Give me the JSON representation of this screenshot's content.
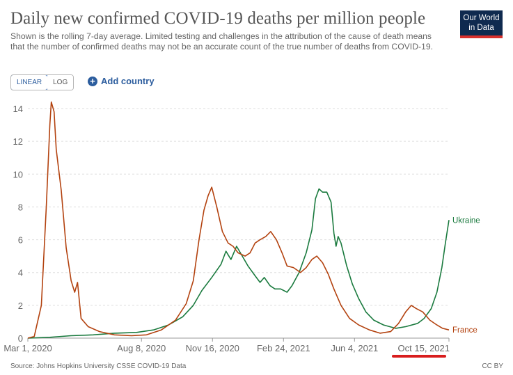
{
  "header": {
    "title": "Daily new confirmed COVID-19 deaths per million people",
    "subtitle": "Shown is the rolling 7-day average. Limited testing and challenges in the attribution of the cause of death means that the number of confirmed deaths may not be an accurate count of the true number of deaths from COVID-19.",
    "logo_line1": "Our World",
    "logo_line2": "in Data"
  },
  "controls": {
    "linear_label": "LINEAR",
    "log_label": "LOG",
    "add_country_label": "Add country",
    "add_icon": "plus-circle-icon"
  },
  "footer": {
    "source": "Source: Johns Hopkins University CSSE COVID-19 Data",
    "license": "CC BY"
  },
  "colors": {
    "ukraine": "#1a7a3e",
    "france": "#b3420f",
    "grid": "#dddddd",
    "highlight": "#d81d1d"
  },
  "chart_data": {
    "type": "line",
    "x_range": [
      "2020-03-01",
      "2021-10-15"
    ],
    "ylim": [
      0,
      14
    ],
    "y_ticks": [
      "0",
      "2",
      "4",
      "6",
      "8",
      "10",
      "12",
      "14"
    ],
    "x_ticks": [
      "Mar 1, 2020",
      "Aug 8, 2020",
      "Nov 16, 2020",
      "Feb 24, 2021",
      "Jun 4, 2021",
      "Oct 15, 2021"
    ],
    "x_tick_dates": [
      "2020-03-01",
      "2020-08-08",
      "2020-11-16",
      "2021-02-24",
      "2021-06-04",
      "2021-10-15"
    ],
    "series": [
      {
        "name": "Ukraine",
        "color": "#1a7a3e",
        "points": [
          [
            "2020-03-01",
            0
          ],
          [
            "2020-04-01",
            0.05
          ],
          [
            "2020-05-01",
            0.15
          ],
          [
            "2020-06-01",
            0.2
          ],
          [
            "2020-07-01",
            0.3
          ],
          [
            "2020-08-01",
            0.35
          ],
          [
            "2020-08-25",
            0.5
          ],
          [
            "2020-09-15",
            0.8
          ],
          [
            "2020-10-05",
            1.3
          ],
          [
            "2020-10-20",
            2.0
          ],
          [
            "2020-11-01",
            2.9
          ],
          [
            "2020-11-15",
            3.7
          ],
          [
            "2020-11-28",
            4.5
          ],
          [
            "2020-12-05",
            5.3
          ],
          [
            "2020-12-12",
            4.8
          ],
          [
            "2020-12-20",
            5.6
          ],
          [
            "2020-12-28",
            5.0
          ],
          [
            "2021-01-05",
            4.4
          ],
          [
            "2021-01-15",
            3.8
          ],
          [
            "2021-01-22",
            3.4
          ],
          [
            "2021-01-28",
            3.7
          ],
          [
            "2021-02-05",
            3.2
          ],
          [
            "2021-02-12",
            3.0
          ],
          [
            "2021-02-20",
            3.0
          ],
          [
            "2021-03-01",
            2.8
          ],
          [
            "2021-03-08",
            3.2
          ],
          [
            "2021-03-18",
            4.0
          ],
          [
            "2021-03-28",
            5.2
          ],
          [
            "2021-04-05",
            6.6
          ],
          [
            "2021-04-10",
            8.5
          ],
          [
            "2021-04-15",
            9.1
          ],
          [
            "2021-04-20",
            8.9
          ],
          [
            "2021-04-26",
            8.9
          ],
          [
            "2021-05-02",
            8.3
          ],
          [
            "2021-05-06",
            6.4
          ],
          [
            "2021-05-09",
            5.6
          ],
          [
            "2021-05-12",
            6.2
          ],
          [
            "2021-05-16",
            5.8
          ],
          [
            "2021-05-24",
            4.4
          ],
          [
            "2021-06-01",
            3.3
          ],
          [
            "2021-06-10",
            2.4
          ],
          [
            "2021-06-20",
            1.6
          ],
          [
            "2021-07-01",
            1.1
          ],
          [
            "2021-07-15",
            0.8
          ],
          [
            "2021-08-01",
            0.6
          ],
          [
            "2021-08-15",
            0.7
          ],
          [
            "2021-09-01",
            0.9
          ],
          [
            "2021-09-10",
            1.2
          ],
          [
            "2021-09-20",
            1.8
          ],
          [
            "2021-09-28",
            2.8
          ],
          [
            "2021-10-05",
            4.3
          ],
          [
            "2021-10-10",
            5.8
          ],
          [
            "2021-10-15",
            7.2
          ]
        ]
      },
      {
        "name": "France",
        "color": "#b3420f",
        "points": [
          [
            "2020-03-01",
            0
          ],
          [
            "2020-03-10",
            0.1
          ],
          [
            "2020-03-20",
            2.0
          ],
          [
            "2020-03-27",
            8.0
          ],
          [
            "2020-04-01",
            13.0
          ],
          [
            "2020-04-03",
            14.4
          ],
          [
            "2020-04-07",
            13.8
          ],
          [
            "2020-04-10",
            11.5
          ],
          [
            "2020-04-17",
            9.0
          ],
          [
            "2020-04-24",
            5.5
          ],
          [
            "2020-05-01",
            3.5
          ],
          [
            "2020-05-06",
            2.8
          ],
          [
            "2020-05-10",
            3.4
          ],
          [
            "2020-05-15",
            1.2
          ],
          [
            "2020-05-25",
            0.7
          ],
          [
            "2020-06-10",
            0.4
          ],
          [
            "2020-07-01",
            0.2
          ],
          [
            "2020-07-25",
            0.15
          ],
          [
            "2020-08-15",
            0.2
          ],
          [
            "2020-09-05",
            0.5
          ],
          [
            "2020-09-25",
            1.1
          ],
          [
            "2020-10-10",
            2.1
          ],
          [
            "2020-10-20",
            3.5
          ],
          [
            "2020-10-28",
            6.0
          ],
          [
            "2020-11-04",
            7.8
          ],
          [
            "2020-11-10",
            8.7
          ],
          [
            "2020-11-15",
            9.2
          ],
          [
            "2020-11-22",
            8.0
          ],
          [
            "2020-11-30",
            6.5
          ],
          [
            "2020-12-08",
            5.8
          ],
          [
            "2020-12-15",
            5.6
          ],
          [
            "2020-12-22",
            5.2
          ],
          [
            "2021-01-01",
            5.0
          ],
          [
            "2021-01-08",
            5.2
          ],
          [
            "2021-01-15",
            5.8
          ],
          [
            "2021-01-22",
            6.0
          ],
          [
            "2021-01-30",
            6.2
          ],
          [
            "2021-02-06",
            6.5
          ],
          [
            "2021-02-14",
            6.0
          ],
          [
            "2021-02-22",
            5.2
          ],
          [
            "2021-03-01",
            4.4
          ],
          [
            "2021-03-10",
            4.3
          ],
          [
            "2021-03-20",
            4.0
          ],
          [
            "2021-03-28",
            4.3
          ],
          [
            "2021-04-05",
            4.8
          ],
          [
            "2021-04-12",
            5.0
          ],
          [
            "2021-04-20",
            4.6
          ],
          [
            "2021-04-28",
            3.9
          ],
          [
            "2021-05-06",
            3.0
          ],
          [
            "2021-05-16",
            2.0
          ],
          [
            "2021-05-28",
            1.2
          ],
          [
            "2021-06-10",
            0.8
          ],
          [
            "2021-06-25",
            0.5
          ],
          [
            "2021-07-10",
            0.3
          ],
          [
            "2021-07-25",
            0.4
          ],
          [
            "2021-08-05",
            0.9
          ],
          [
            "2021-08-15",
            1.6
          ],
          [
            "2021-08-23",
            2.0
          ],
          [
            "2021-08-30",
            1.8
          ],
          [
            "2021-09-08",
            1.6
          ],
          [
            "2021-09-18",
            1.1
          ],
          [
            "2021-09-28",
            0.8
          ],
          [
            "2021-10-06",
            0.6
          ],
          [
            "2021-10-15",
            0.5
          ]
        ]
      }
    ]
  }
}
